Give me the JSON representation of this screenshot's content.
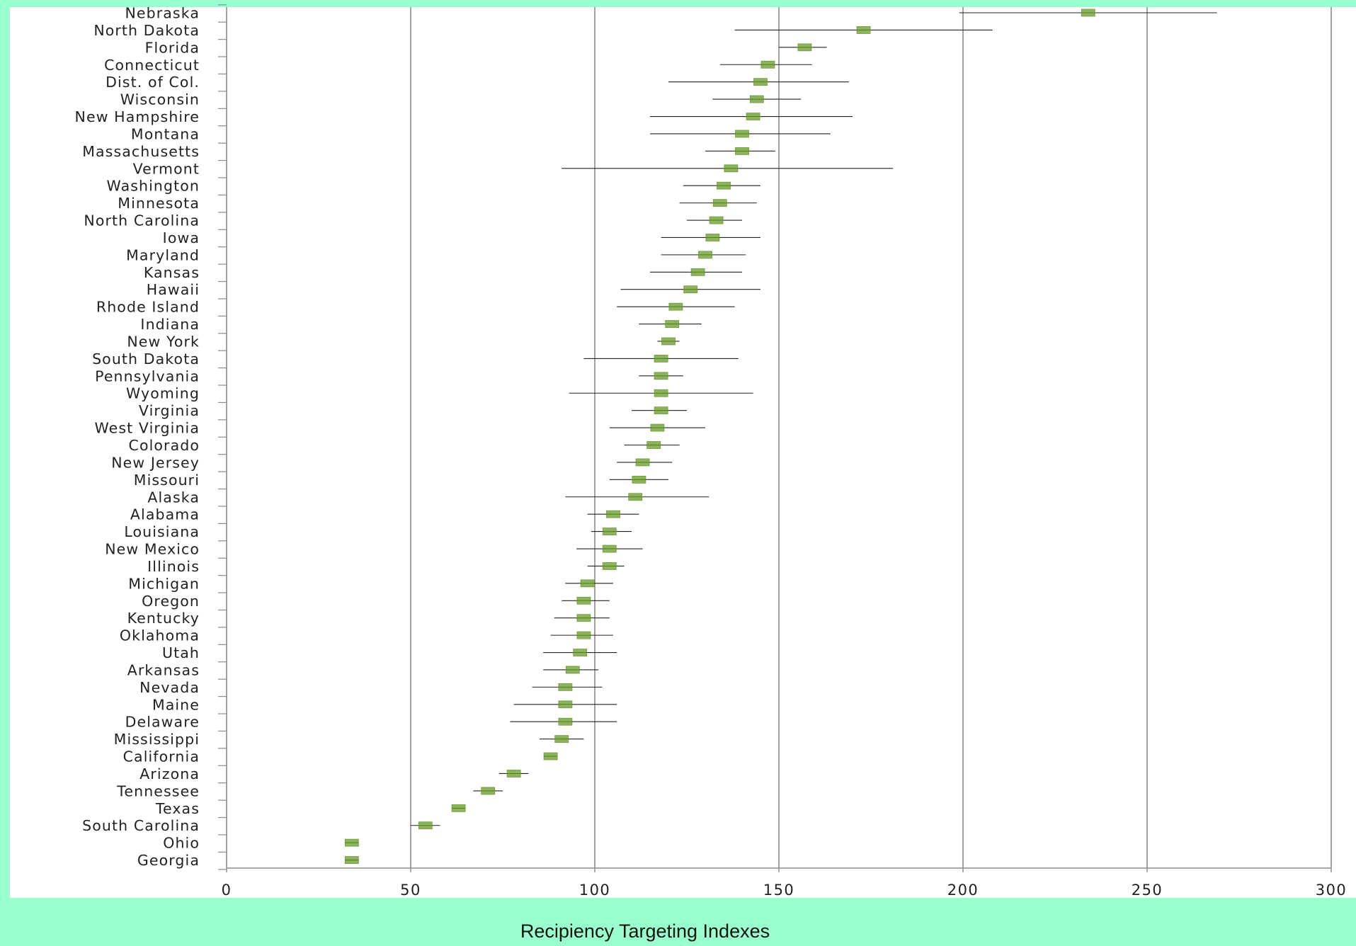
{
  "colors": {
    "background": "#99FFCC",
    "plot_area": "#FFFFFF",
    "gridline": "#8C8C8C",
    "marker": "#8DB45A",
    "marker_edge": "#6E9A3C",
    "error_bar": "#222222"
  },
  "chart_data": {
    "type": "scatter",
    "orientation": "horizontal",
    "marker": "short-bar",
    "error_bars": true,
    "title": "",
    "xlabel": "Recipiency Targeting Indexes",
    "ylabel": "",
    "xlim": [
      0,
      300
    ],
    "xticks": [
      0,
      50,
      100,
      150,
      200,
      250,
      300
    ],
    "grid": "vertical",
    "legend": "none",
    "categories": [
      "Nebraska",
      "North Dakota",
      "Florida",
      "Connecticut",
      "Dist. of Col.",
      "Wisconsin",
      "New Hampshire",
      "Montana",
      "Massachusetts",
      "Vermont",
      "Washington",
      "Minnesota",
      "North Carolina",
      "Iowa",
      "Maryland",
      "Kansas",
      "Hawaii",
      "Rhode Island",
      "Indiana",
      "New York",
      "South Dakota",
      "Pennsylvania",
      "Wyoming",
      "Virginia",
      "West Virginia",
      "Colorado",
      "New Jersey",
      "Missouri",
      "Alaska",
      "Alabama",
      "Louisiana",
      "New Mexico",
      "Illinois",
      "Michigan",
      "Oregon",
      "Kentucky",
      "Oklahoma",
      "Utah",
      "Arkansas",
      "Nevada",
      "Maine",
      "Delaware",
      "Mississippi",
      "California",
      "Arizona",
      "Tennessee",
      "Texas",
      "South Carolina",
      "Ohio",
      "Georgia"
    ],
    "values": [
      234,
      173,
      157,
      147,
      145,
      144,
      143,
      140,
      140,
      137,
      135,
      134,
      133,
      132,
      130,
      128,
      126,
      122,
      121,
      120,
      118,
      118,
      118,
      118,
      117,
      116,
      113,
      112,
      111,
      105,
      104,
      104,
      104,
      98,
      97,
      97,
      97,
      96,
      94,
      92,
      92,
      92,
      91,
      88,
      78,
      71,
      63,
      54,
      34,
      34
    ],
    "lower": [
      199,
      138,
      150,
      134,
      120,
      132,
      115,
      115,
      130,
      91,
      124,
      123,
      125,
      118,
      118,
      115,
      107,
      106,
      112,
      117,
      97,
      112,
      93,
      110,
      104,
      108,
      106,
      104,
      92,
      98,
      99,
      95,
      98,
      92,
      91,
      89,
      88,
      86,
      86,
      83,
      78,
      77,
      85,
      87,
      74,
      67,
      62,
      50,
      33,
      33
    ],
    "upper": [
      269,
      208,
      163,
      159,
      169,
      156,
      170,
      164,
      149,
      181,
      145,
      144,
      140,
      145,
      141,
      140,
      145,
      138,
      129,
      123,
      139,
      124,
      143,
      125,
      130,
      123,
      121,
      120,
      131,
      112,
      110,
      113,
      108,
      105,
      104,
      104,
      105,
      106,
      101,
      102,
      106,
      106,
      97,
      89,
      82,
      75,
      64,
      58,
      35,
      35
    ]
  }
}
